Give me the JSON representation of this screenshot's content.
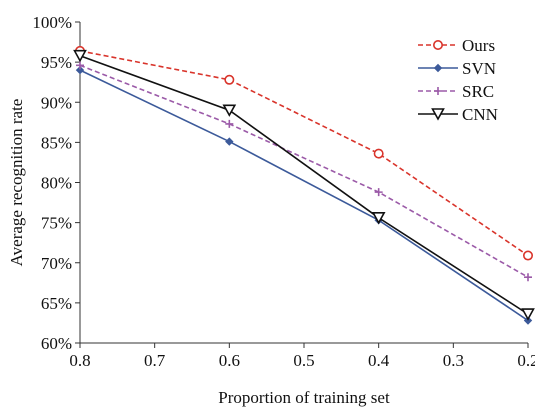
{
  "chart_data": {
    "type": "line",
    "title": "",
    "xlabel": "Proportion of training set",
    "ylabel": "Average recognition rate",
    "x": [
      0.8,
      0.6,
      0.4,
      0.2
    ],
    "x_ticks": [
      "0.8",
      "0.7",
      "0.6",
      "0.5",
      "0.4",
      "0.3",
      "0.2"
    ],
    "y_ticks": [
      "60%",
      "65%",
      "70%",
      "75%",
      "80%",
      "85%",
      "90%",
      "95%",
      "100%"
    ],
    "xlim": [
      0.8,
      0.2
    ],
    "ylim": [
      60,
      100
    ],
    "grid": false,
    "legend_position": "top-right",
    "series": [
      {
        "name": "Ours",
        "values": [
          96.4,
          92.8,
          83.6,
          70.9
        ],
        "color": "#d9342b",
        "dash": "dashed",
        "marker": "circle"
      },
      {
        "name": "SVN",
        "values": [
          94.0,
          85.1,
          75.3,
          62.8
        ],
        "color": "#3c5a9a",
        "dash": "solid",
        "marker": "diamond"
      },
      {
        "name": "SRC",
        "values": [
          94.6,
          87.3,
          78.8,
          68.2
        ],
        "color": "#9b5aa8",
        "dash": "dashed",
        "marker": "plus"
      },
      {
        "name": "CNN",
        "values": [
          95.8,
          89.0,
          75.6,
          63.6
        ],
        "color": "#111111",
        "dash": "solid",
        "marker": "triangle-down"
      }
    ]
  }
}
